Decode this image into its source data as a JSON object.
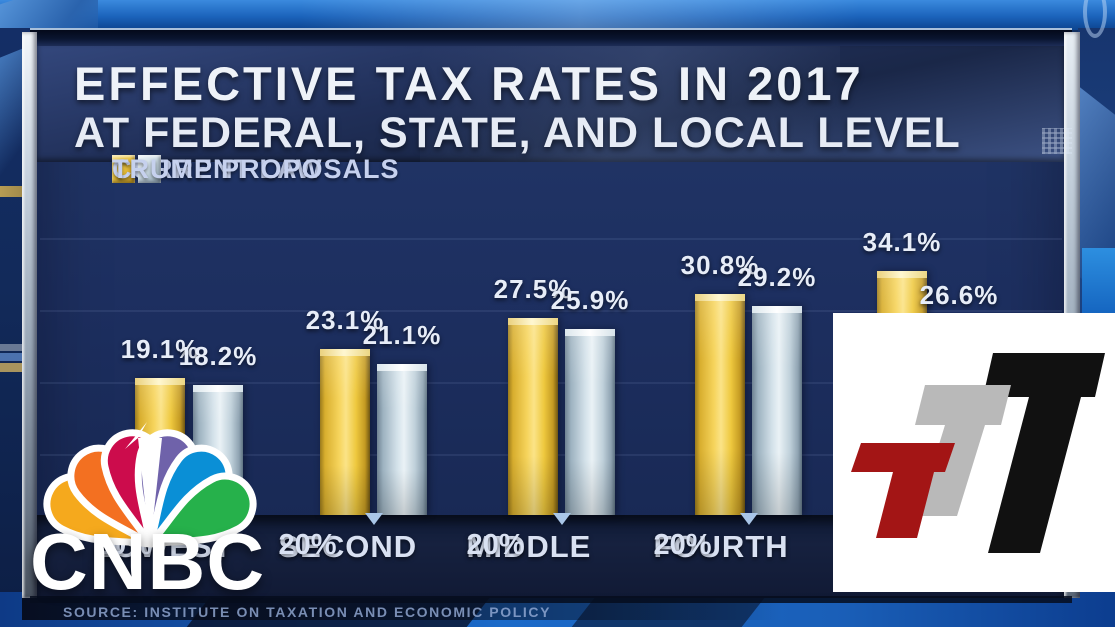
{
  "header": {
    "line1": "EFFECTIVE TAX RATES IN 2017",
    "line2": "AT FEDERAL, STATE, AND LOCAL LEVEL"
  },
  "legend": {
    "items": [
      {
        "label": "CURRENT LAW",
        "color": "#e9c23f"
      },
      {
        "label": "TRUMP PROPOSALS",
        "color": "#ccdbe4"
      }
    ]
  },
  "chart_data": {
    "type": "bar",
    "title": "EFFECTIVE TAX RATES IN 2017 AT FEDERAL, STATE, AND LOCAL LEVEL",
    "unit": "%",
    "categories": [
      "LOWEST 20%",
      "SECOND 20%",
      "MIDDLE 20%",
      "FOURTH 20%",
      ""
    ],
    "series": [
      {
        "name": "CURRENT LAW",
        "color": "#e9c23f",
        "values": [
          19.1,
          23.1,
          27.5,
          30.8,
          34.1
        ]
      },
      {
        "name": "TRUMP PROPOSALS",
        "color": "#ccdbe4",
        "values": [
          18.2,
          21.1,
          25.9,
          29.2,
          26.6
        ]
      }
    ],
    "ylim": [
      0,
      40
    ],
    "grid": "faint-horizontal",
    "legend_position": "top-left",
    "value_labels": "above-bars"
  },
  "source": {
    "text": "SOURCE: INSTITUTE ON TAXATION AND ECONOMIC POLICY"
  },
  "branding": {
    "network_wordmark": "CNBC",
    "peacock_colors": [
      "#f5a91d",
      "#f37021",
      "#cc0c4c",
      "#6f62aa",
      "#0a8fd6",
      "#26b14b"
    ],
    "overlay_logo": {
      "letters": [
        "T",
        "T",
        "T"
      ],
      "colors": [
        "#a31515",
        "#b9b9b9",
        "#111111"
      ]
    },
    "corner_glyph": "0"
  }
}
